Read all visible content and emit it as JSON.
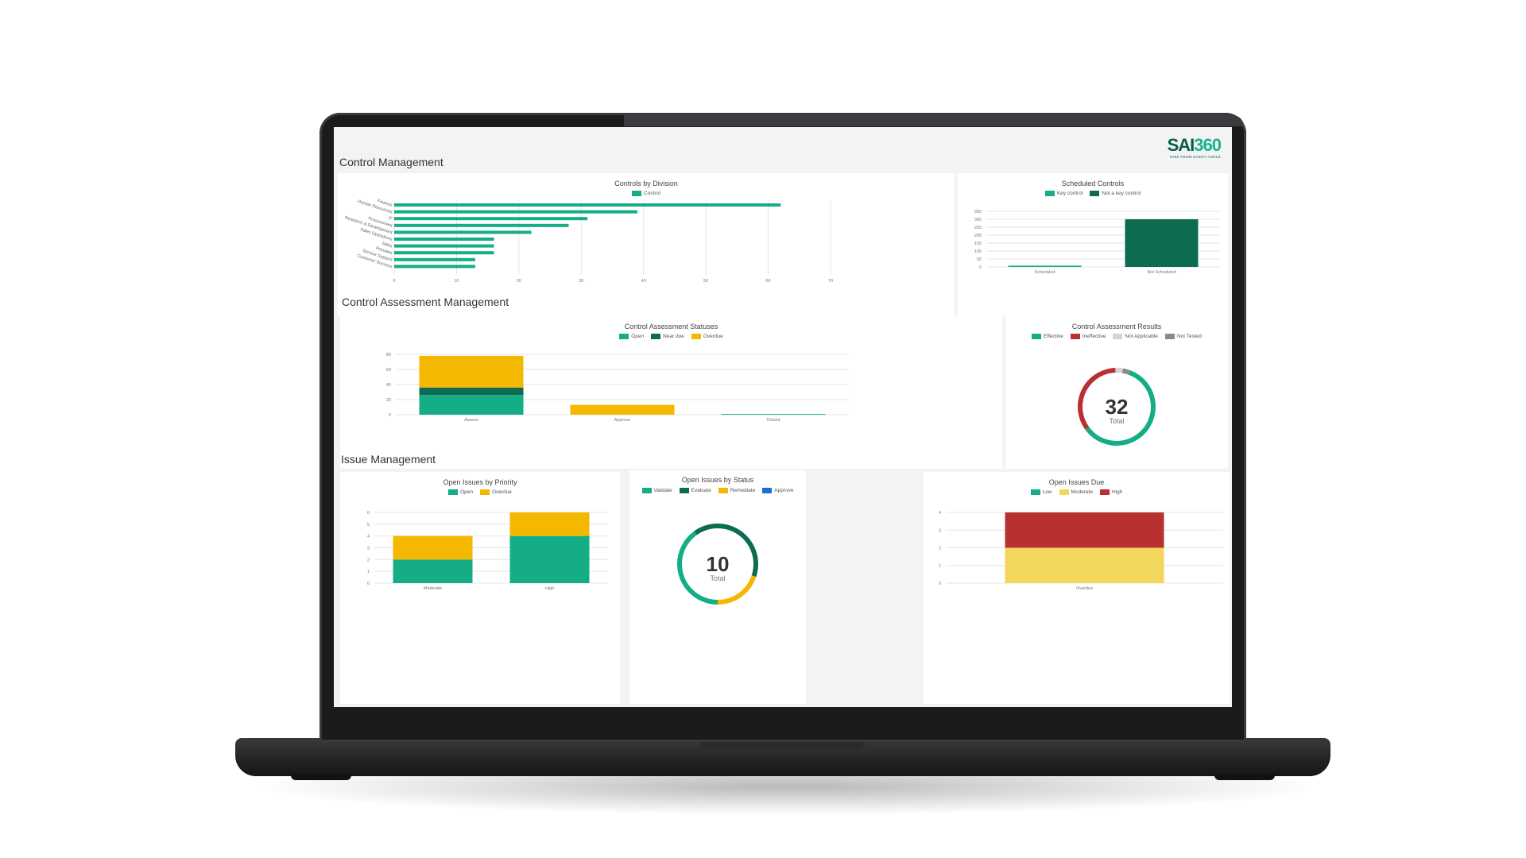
{
  "brand": {
    "logo_prefix": "SAI",
    "logo_suffix": "360",
    "tagline": "RISK FROM EVERY ANGLE"
  },
  "colors": {
    "green": "#15ad86",
    "dark_green": "#0d6b52",
    "amber": "#f5b800",
    "red": "#b8302f",
    "light_grey": "#d4d4d4",
    "grey": "#8a8a8a",
    "blue": "#1a6fd1",
    "yellow": "#f3d65c"
  },
  "sections": {
    "control_management": "Control Management",
    "control_assessment_management": "Control Assessment Management",
    "issue_management": "Issue Management"
  },
  "chart_data": [
    {
      "id": "controls_by_division",
      "type": "bar",
      "orientation": "horizontal",
      "title": "Controls by Division",
      "legend": [
        "Control"
      ],
      "categories": [
        "Finance",
        "Human Resources",
        "IT",
        "Procurement",
        "Research & Development",
        "Sales Operations",
        "Sales",
        "Presales",
        "Service Support",
        "Customer Success"
      ],
      "values": [
        62,
        39,
        31,
        28,
        22,
        16,
        16,
        16,
        13,
        13
      ],
      "xlim": [
        0,
        70
      ],
      "xticks": [
        0,
        10,
        20,
        30,
        40,
        50,
        60,
        70
      ]
    },
    {
      "id": "scheduled_controls",
      "type": "bar",
      "title": "Scheduled Controls",
      "legend": [
        "Key control",
        "Not a key control"
      ],
      "categories": [
        "Scheduled",
        "Not Scheduled"
      ],
      "series": [
        {
          "name": "Key control",
          "values": [
            8,
            0
          ]
        },
        {
          "name": "Not a key control",
          "values": [
            0,
            300
          ]
        }
      ],
      "ylim": [
        0,
        350
      ],
      "yticks": [
        0,
        50,
        100,
        150,
        200,
        250,
        300,
        350
      ]
    },
    {
      "id": "control_assessment_statuses",
      "type": "bar",
      "stacked": true,
      "title": "Control Assessment Statuses",
      "legend": [
        "Open",
        "Near due",
        "Overdue"
      ],
      "categories": [
        "Assess",
        "Approve",
        "Closed"
      ],
      "series": [
        {
          "name": "Open",
          "values": [
            26,
            0,
            1
          ]
        },
        {
          "name": "Near due",
          "values": [
            10,
            0,
            0
          ]
        },
        {
          "name": "Overdue",
          "values": [
            42,
            13,
            0
          ]
        }
      ],
      "ylim": [
        0,
        80
      ],
      "yticks": [
        0,
        20,
        40,
        60,
        80
      ]
    },
    {
      "id": "control_assessment_results",
      "type": "pie",
      "donut": true,
      "title": "Control Assessment Results",
      "legend": [
        "Effective",
        "Ineffective",
        "Not Applicable",
        "Not Tested"
      ],
      "center_value": "32",
      "center_label": "Total",
      "values": [
        19,
        11,
        1,
        1
      ]
    },
    {
      "id": "open_issues_by_priority",
      "type": "bar",
      "stacked": true,
      "title": "Open Issues by Priority",
      "legend": [
        "Open",
        "Overdue"
      ],
      "categories": [
        "Moderate",
        "High"
      ],
      "series": [
        {
          "name": "Open",
          "values": [
            2,
            4
          ]
        },
        {
          "name": "Overdue",
          "values": [
            2,
            2
          ]
        }
      ],
      "ylim": [
        0,
        6
      ],
      "yticks": [
        0,
        1,
        2,
        3,
        4,
        5,
        6
      ]
    },
    {
      "id": "open_issues_by_status",
      "type": "pie",
      "donut": true,
      "title": "Open Issues by Status",
      "legend": [
        "Validate",
        "Evaluate",
        "Remediate",
        "Approve"
      ],
      "center_value": "10",
      "center_label": "Total",
      "values": [
        4,
        4,
        2,
        0
      ]
    },
    {
      "id": "open_issues_due",
      "type": "bar",
      "stacked": true,
      "title": "Open Issues Due",
      "legend": [
        "Low",
        "Moderate",
        "High"
      ],
      "categories": [
        "Overdue"
      ],
      "series": [
        {
          "name": "Low",
          "values": [
            0
          ]
        },
        {
          "name": "Moderate",
          "values": [
            2
          ]
        },
        {
          "name": "High",
          "values": [
            2
          ]
        }
      ],
      "ylim": [
        0,
        4
      ],
      "yticks": [
        0,
        1,
        2,
        3,
        4
      ]
    }
  ]
}
